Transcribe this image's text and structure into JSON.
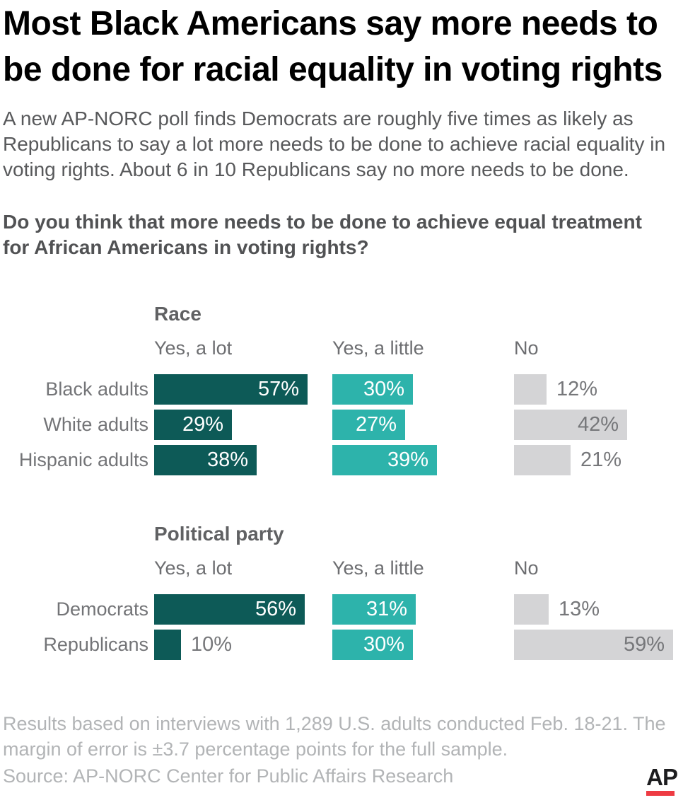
{
  "header": {
    "title": "Most Black Americans say more needs to be done for racial equality in voting rights",
    "subtitle": "A new AP-NORC poll finds Democrats are roughly five times as likely as Republicans to say a lot more needs to be done to achieve racial equality in voting rights. About 6 in 10 Republicans say no more needs to be done.",
    "question": "Do you think that more needs to be done to achieve equal treatment for African Americans in voting rights?"
  },
  "chart_data": {
    "type": "bar",
    "orientation": "horizontal",
    "unit": "%",
    "columns": [
      "Yes, a lot",
      "Yes, a little",
      "No"
    ],
    "column_colors": [
      "#0d5a57",
      "#2db3ab",
      "#d4d4d6"
    ],
    "inside_label_colors": [
      "#ffffff",
      "#ffffff",
      "#76777a"
    ],
    "sections": [
      {
        "title": "Race",
        "rows": [
          {
            "label": "Black adults",
            "values": [
              57,
              30,
              12
            ]
          },
          {
            "label": "White adults",
            "values": [
              29,
              27,
              42
            ]
          },
          {
            "label": "Hispanic adults",
            "values": [
              38,
              39,
              21
            ]
          }
        ]
      },
      {
        "title": "Political party",
        "rows": [
          {
            "label": "Democrats",
            "values": [
              56,
              31,
              13
            ]
          },
          {
            "label": "Republicans",
            "values": [
              10,
              30,
              59
            ]
          }
        ]
      }
    ]
  },
  "footer": {
    "note": "Results based on interviews with 1,289 U.S. adults conducted Feb. 18-21. The margin of error is ±3.7 percentage points for the full sample.",
    "source": "Source: AP-NORC Center for Public Affairs Research",
    "logo_text": "AP"
  }
}
